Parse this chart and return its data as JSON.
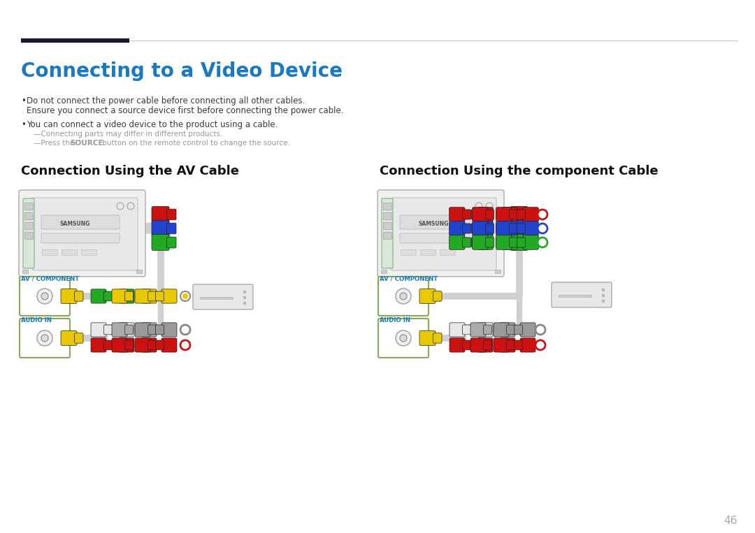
{
  "title": "Connecting to a Video Device",
  "title_color": "#1a7abf",
  "title_fontsize": 20,
  "bg_color": "#ffffff",
  "header_dark_color": "#1a1a2e",
  "header_light_color": "#cccccc",
  "bullet1_line1": "Do not connect the power cable before connecting all other cables.",
  "bullet1_line2": "Ensure you connect a source device first before connecting the power cable.",
  "bullet2": "You can connect a video device to the product using a cable.",
  "sub1": "Connecting parts may differ in different products.",
  "sub2_pre": "—Press the ",
  "sub2_bold": "SOURCE",
  "sub2_post": " button on the remote control to change the source.",
  "section1_title": "Connection Using the AV Cable",
  "section2_title": "Connection Using the component Cable",
  "label_av": "AV / COMPONENT",
  "label_audio": "AUDIO IN",
  "page_number": "46",
  "text_color": "#3a3a3a",
  "label_color": "#1a7abf",
  "small_text_color": "#999999",
  "section_title_fontsize": 13,
  "body_fontsize": 8.5
}
